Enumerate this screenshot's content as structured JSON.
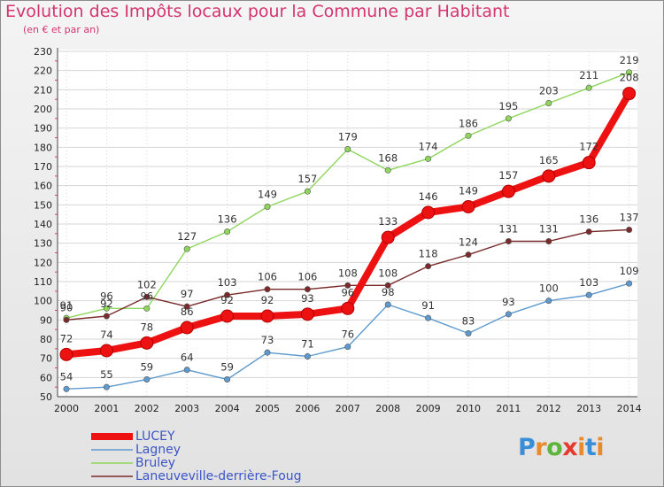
{
  "chart_data": {
    "type": "line",
    "title": "Evolution des Impôts locaux pour la Commune par Habitant",
    "subtitle": "(en € et par an)",
    "x": [
      "2000",
      "2001",
      "2002",
      "2003",
      "2004",
      "2005",
      "2006",
      "2007",
      "2008",
      "2009",
      "2010",
      "2011",
      "2012",
      "2013",
      "2014"
    ],
    "yticks": [
      50,
      60,
      70,
      80,
      90,
      100,
      110,
      120,
      130,
      140,
      150,
      160,
      170,
      180,
      190,
      200,
      210,
      220,
      230
    ],
    "ylim": [
      50,
      230
    ],
    "grid": true,
    "legend_position": "bottom-left",
    "series": [
      {
        "name": "LUCEY",
        "color": "#ee1111",
        "values": [
          72,
          74,
          78,
          86,
          92,
          92,
          93,
          96,
          133,
          146,
          149,
          157,
          165,
          172,
          208
        ]
      },
      {
        "name": "Lagney",
        "color": "#5e9acd",
        "values": [
          54,
          55,
          59,
          64,
          59,
          73,
          71,
          76,
          98,
          91,
          83,
          93,
          100,
          103,
          109
        ]
      },
      {
        "name": "Bruley",
        "color": "#8fd65c",
        "values": [
          91,
          96,
          96,
          127,
          136,
          149,
          157,
          179,
          168,
          174,
          186,
          195,
          203,
          211,
          219
        ]
      },
      {
        "name": "Laneuveville-derrière-Foug",
        "color": "#7a2a2a",
        "values": [
          90,
          92,
          102,
          97,
          103,
          106,
          106,
          108,
          108,
          118,
          124,
          131,
          131,
          136,
          137
        ]
      }
    ]
  },
  "logo": {
    "p": "P",
    "r": "r",
    "o": "o",
    "x": "x",
    "i": "i",
    "t": "t",
    "i2": "i"
  }
}
